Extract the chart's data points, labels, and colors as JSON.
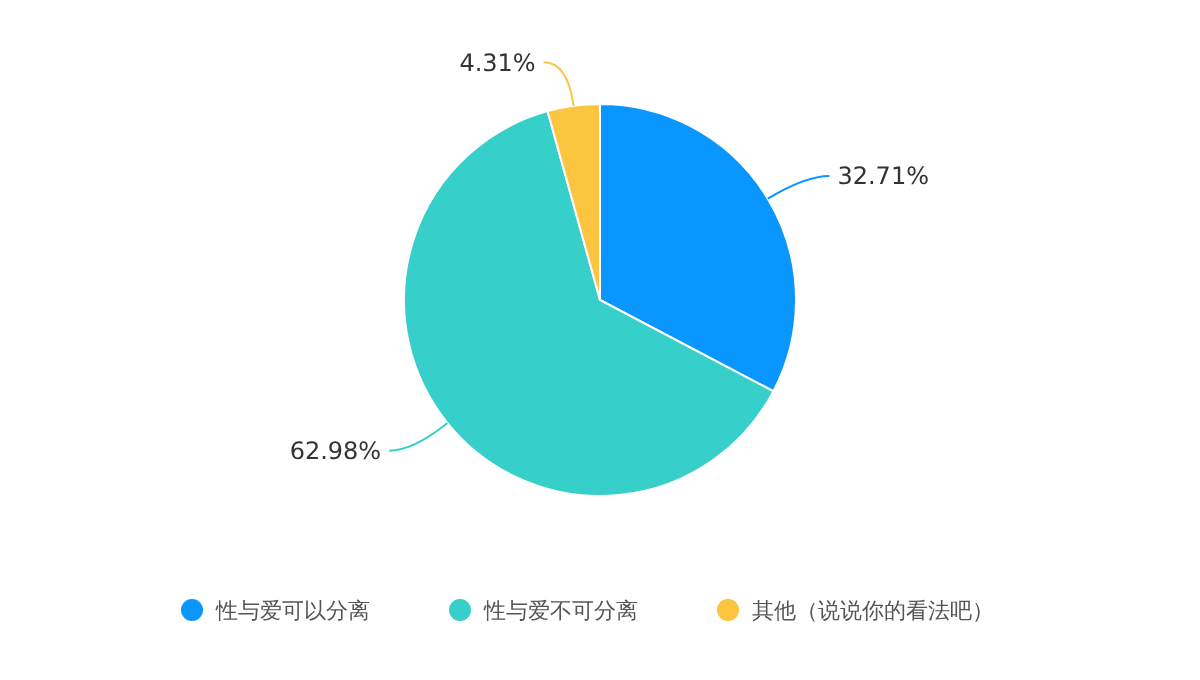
{
  "chart_data": {
    "type": "pie",
    "categories": [
      "性与爱可以分离",
      "性与爱不可分离",
      "其他（说说你的看法吧）"
    ],
    "values": [
      32.71,
      62.98,
      4.31
    ],
    "colors": [
      "#0a96ff",
      "#36cfc9",
      "#fbc53f"
    ],
    "value_labels": [
      "32.71%",
      "62.98%",
      "4.31%"
    ],
    "legend": "bottom"
  }
}
